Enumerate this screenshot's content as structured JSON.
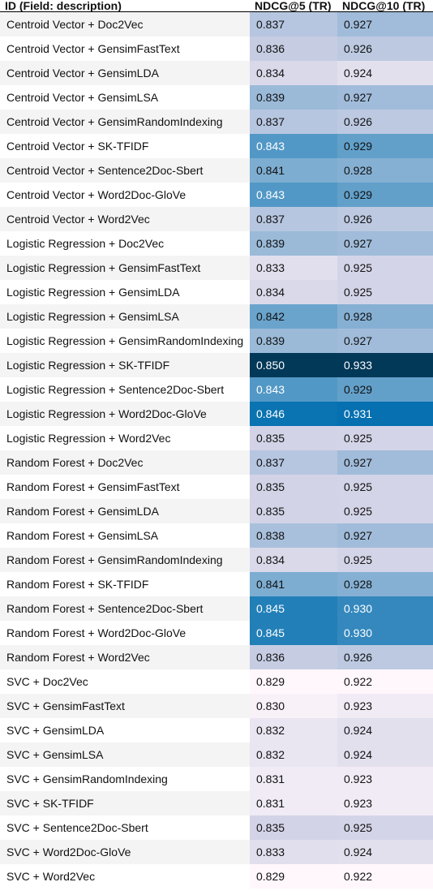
{
  "table": {
    "headers": {
      "id": "ID (Field: description)",
      "ndcg5": "NDCG@5 (TR)",
      "ndcg10": "NDCG@10 (TR)"
    },
    "rows": [
      {
        "id": "Centroid Vector + Doc2Vec",
        "ndcg5": "0.837",
        "ndcg10": "0.927"
      },
      {
        "id": "Centroid Vector + GensimFastText",
        "ndcg5": "0.836",
        "ndcg10": "0.926"
      },
      {
        "id": "Centroid Vector + GensimLDA",
        "ndcg5": "0.834",
        "ndcg10": "0.924"
      },
      {
        "id": "Centroid Vector + GensimLSA",
        "ndcg5": "0.839",
        "ndcg10": "0.927"
      },
      {
        "id": "Centroid Vector + GensimRandomIndexing",
        "ndcg5": "0.837",
        "ndcg10": "0.926"
      },
      {
        "id": "Centroid Vector + SK-TFIDF",
        "ndcg5": "0.843",
        "ndcg10": "0.929"
      },
      {
        "id": "Centroid Vector + Sentence2Doc-Sbert",
        "ndcg5": "0.841",
        "ndcg10": "0.928"
      },
      {
        "id": "Centroid Vector + Word2Doc-GloVe",
        "ndcg5": "0.843",
        "ndcg10": "0.929"
      },
      {
        "id": "Centroid Vector + Word2Vec",
        "ndcg5": "0.837",
        "ndcg10": "0.926"
      },
      {
        "id": "Logistic Regression + Doc2Vec",
        "ndcg5": "0.839",
        "ndcg10": "0.927"
      },
      {
        "id": "Logistic Regression + GensimFastText",
        "ndcg5": "0.833",
        "ndcg10": "0.925"
      },
      {
        "id": "Logistic Regression + GensimLDA",
        "ndcg5": "0.834",
        "ndcg10": "0.925"
      },
      {
        "id": "Logistic Regression + GensimLSA",
        "ndcg5": "0.842",
        "ndcg10": "0.928"
      },
      {
        "id": "Logistic Regression + GensimRandomIndexing",
        "ndcg5": "0.839",
        "ndcg10": "0.927"
      },
      {
        "id": "Logistic Regression + SK-TFIDF",
        "ndcg5": "0.850",
        "ndcg10": "0.933"
      },
      {
        "id": "Logistic Regression + Sentence2Doc-Sbert",
        "ndcg5": "0.843",
        "ndcg10": "0.929"
      },
      {
        "id": "Logistic Regression + Word2Doc-GloVe",
        "ndcg5": "0.846",
        "ndcg10": "0.931"
      },
      {
        "id": "Logistic Regression + Word2Vec",
        "ndcg5": "0.835",
        "ndcg10": "0.925"
      },
      {
        "id": "Random Forest + Doc2Vec",
        "ndcg5": "0.837",
        "ndcg10": "0.927"
      },
      {
        "id": "Random Forest + GensimFastText",
        "ndcg5": "0.835",
        "ndcg10": "0.925"
      },
      {
        "id": "Random Forest + GensimLDA",
        "ndcg5": "0.835",
        "ndcg10": "0.925"
      },
      {
        "id": "Random Forest + GensimLSA",
        "ndcg5": "0.838",
        "ndcg10": "0.927"
      },
      {
        "id": "Random Forest + GensimRandomIndexing",
        "ndcg5": "0.834",
        "ndcg10": "0.925"
      },
      {
        "id": "Random Forest + SK-TFIDF",
        "ndcg5": "0.841",
        "ndcg10": "0.928"
      },
      {
        "id": "Random Forest + Sentence2Doc-Sbert",
        "ndcg5": "0.845",
        "ndcg10": "0.930"
      },
      {
        "id": "Random Forest + Word2Doc-GloVe",
        "ndcg5": "0.845",
        "ndcg10": "0.930"
      },
      {
        "id": "Random Forest + Word2Vec",
        "ndcg5": "0.836",
        "ndcg10": "0.926"
      },
      {
        "id": "SVC + Doc2Vec",
        "ndcg5": "0.829",
        "ndcg10": "0.922"
      },
      {
        "id": "SVC + GensimFastText",
        "ndcg5": "0.830",
        "ndcg10": "0.923"
      },
      {
        "id": "SVC + GensimLDA",
        "ndcg5": "0.832",
        "ndcg10": "0.924"
      },
      {
        "id": "SVC + GensimLSA",
        "ndcg5": "0.832",
        "ndcg10": "0.924"
      },
      {
        "id": "SVC + GensimRandomIndexing",
        "ndcg5": "0.831",
        "ndcg10": "0.923"
      },
      {
        "id": "SVC + SK-TFIDF",
        "ndcg5": "0.831",
        "ndcg10": "0.923"
      },
      {
        "id": "SVC + Sentence2Doc-Sbert",
        "ndcg5": "0.835",
        "ndcg10": "0.925"
      },
      {
        "id": "SVC + Word2Doc-GloVe",
        "ndcg5": "0.833",
        "ndcg10": "0.924"
      },
      {
        "id": "SVC + Word2Vec",
        "ndcg5": "0.829",
        "ndcg10": "0.922"
      }
    ]
  },
  "heatmap_colors": {
    "low": "#fff7fb",
    "mid_light": "#d0d1e6",
    "mid": "#74a9cf",
    "high": "#0570b0",
    "max": "#023858"
  }
}
